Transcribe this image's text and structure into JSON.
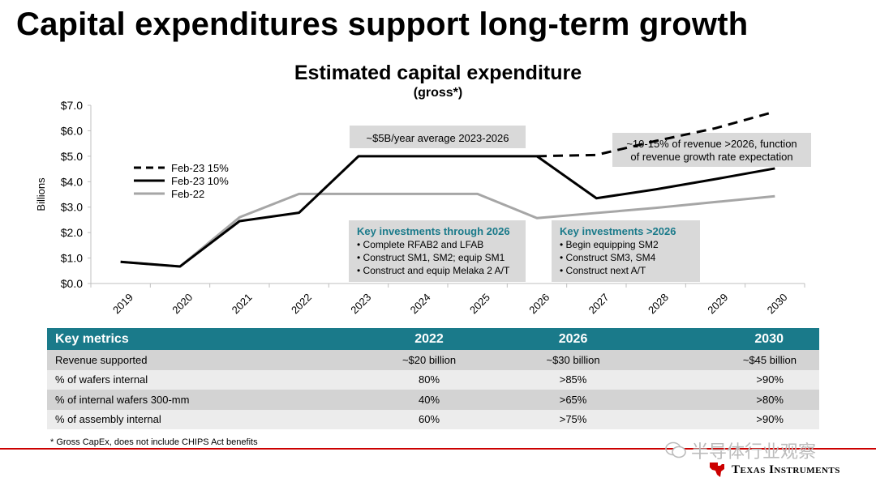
{
  "slide_title": "Capital expenditures support long-term growth",
  "chart_data": {
    "type": "line",
    "title": "Estimated capital expenditure",
    "subtitle": "(gross*)",
    "ylabel": "Billions",
    "xlabel": "",
    "categories": [
      "2019",
      "2020",
      "2021",
      "2022",
      "2023",
      "2024",
      "2025",
      "2026",
      "2027",
      "2028",
      "2029",
      "2030"
    ],
    "ylim": [
      0,
      7
    ],
    "y_ticks": [
      "$0.0",
      "$1.0",
      "$2.0",
      "$3.0",
      "$4.0",
      "$5.0",
      "$6.0",
      "$7.0"
    ],
    "grid": false,
    "legend_position": "left",
    "series": [
      {
        "name": "Feb-23 15%",
        "style": "dashed",
        "color": "#000000",
        "values": [
          0.85,
          0.67,
          2.45,
          2.78,
          5.0,
          5.0,
          5.0,
          5.0,
          5.05,
          5.6,
          6.1,
          6.75
        ]
      },
      {
        "name": "Feb-23 10%",
        "style": "solid",
        "color": "#000000",
        "values": [
          0.85,
          0.67,
          2.45,
          2.78,
          5.0,
          5.0,
          5.0,
          5.0,
          3.35,
          3.7,
          4.1,
          4.52
        ]
      },
      {
        "name": "Feb-22",
        "style": "solid",
        "color": "#a6a6a6",
        "values": [
          0.85,
          0.67,
          2.6,
          3.52,
          3.52,
          3.52,
          3.52,
          2.57,
          2.77,
          2.97,
          3.2,
          3.43
        ]
      }
    ],
    "annotations": {
      "average": "~$5B/year average 2023-2026",
      "revenue_note_line1": "~10-15% of revenue >2026, function",
      "revenue_note_line2": "of revenue growth rate expectation",
      "box1_title": "Key investments through 2026",
      "box1_items": [
        "Complete RFAB2 and LFAB",
        "Construct SM1, SM2; equip SM1",
        "Construct and equip Melaka 2 A/T"
      ],
      "box2_title": "Key investments >2026",
      "box2_items": [
        "Begin equipping SM2",
        "Construct SM3, SM4",
        "Construct next A/T"
      ]
    }
  },
  "table": {
    "headers": [
      "Key metrics",
      "2022",
      "2026",
      "2030"
    ],
    "rows": [
      [
        "Revenue supported",
        "~$20 billion",
        "~$30 billion",
        "~$45 billion"
      ],
      [
        "% of wafers internal",
        "80%",
        ">85%",
        ">90%"
      ],
      [
        "% of internal wafers 300-mm",
        "40%",
        ">65%",
        ">80%"
      ],
      [
        "% of assembly internal",
        "60%",
        ">75%",
        ">90%"
      ]
    ]
  },
  "footnote": "* Gross CapEx, does not include CHIPS Act benefits",
  "watermark": "半导体行业观察",
  "logo_text": "Texas Instruments",
  "colors": {
    "teal": "#1a7a8a",
    "gray_line": "#a6a6a6",
    "accent_red": "#cc0000",
    "box_gray": "#d9d9d9"
  }
}
